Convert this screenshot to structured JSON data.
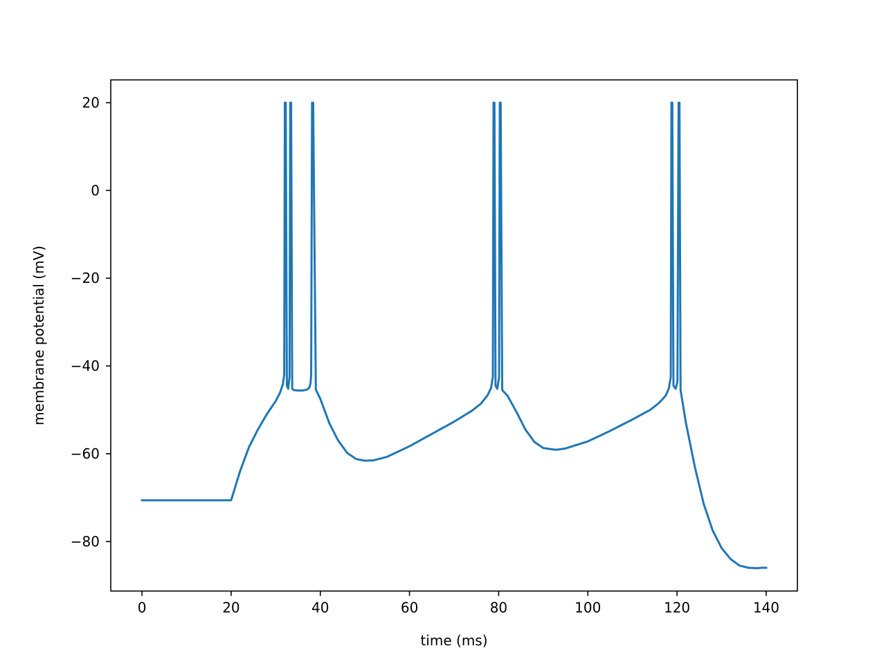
{
  "chart_data": {
    "type": "line",
    "xlabel": "time (ms)",
    "ylabel": "membrane potential (mV)",
    "xlim": [
      -7,
      147
    ],
    "ylim": [
      -91.3,
      25.2
    ],
    "xticks": [
      0,
      20,
      40,
      60,
      80,
      100,
      120,
      140
    ],
    "yticks": [
      -80,
      -60,
      -40,
      -20,
      0,
      20
    ],
    "grid": false,
    "colors": {
      "line": "#1f77b4",
      "axes": "#000000",
      "background": "#ffffff"
    },
    "series": [
      {
        "x": [
          0,
          20,
          22,
          24,
          26,
          28,
          30,
          31,
          31.6,
          31.9,
          32.05,
          32.25,
          32.5,
          32.8,
          33.1,
          33.25,
          33.45,
          33.7,
          34,
          35,
          36,
          37,
          37.5,
          37.8,
          37.95,
          38.15,
          38.4,
          39,
          40,
          42,
          44,
          46,
          48,
          50,
          52,
          55,
          60,
          65,
          70,
          74,
          76,
          77.5,
          78.3,
          78.7,
          78.85,
          79.05,
          79.3,
          79.7,
          80.1,
          80.25,
          80.45,
          80.8,
          82,
          84,
          86,
          88,
          90,
          92,
          93,
          95,
          100,
          105,
          110,
          114,
          116,
          117.5,
          118.2,
          118.6,
          118.75,
          118.95,
          119.2,
          119.7,
          120.1,
          120.35,
          120.55,
          120.8,
          122,
          124,
          126,
          128,
          130,
          132,
          134,
          136,
          138,
          139,
          140
        ],
        "y": [
          -70.6,
          -70.6,
          -64,
          -58.5,
          -54.5,
          -51,
          -48,
          -46,
          -44.2,
          -42,
          20,
          20,
          -44.5,
          -45.2,
          -42.5,
          20,
          20,
          -45.2,
          -45.5,
          -45.6,
          -45.6,
          -45.4,
          -45,
          -44,
          -42,
          20,
          20,
          -45.4,
          -47.5,
          -53,
          -57,
          -59.8,
          -61.2,
          -61.6,
          -61.5,
          -60.7,
          -58.3,
          -55.5,
          -52.7,
          -50.2,
          -48.6,
          -46.7,
          -45,
          -42.5,
          20,
          20,
          -44.5,
          -45.2,
          -42.5,
          20,
          20,
          -45.5,
          -46.8,
          -50.5,
          -54.5,
          -57.3,
          -58.7,
          -59,
          -59.1,
          -58.8,
          -57.2,
          -54.8,
          -52.2,
          -50,
          -48.4,
          -46.7,
          -45,
          -42.5,
          20,
          20,
          -44.5,
          -45.2,
          -43.5,
          20,
          20,
          -45.5,
          -53,
          -63,
          -71.5,
          -77.5,
          -81.5,
          -84,
          -85.5,
          -86,
          -86.1,
          -86,
          -86
        ]
      }
    ]
  }
}
